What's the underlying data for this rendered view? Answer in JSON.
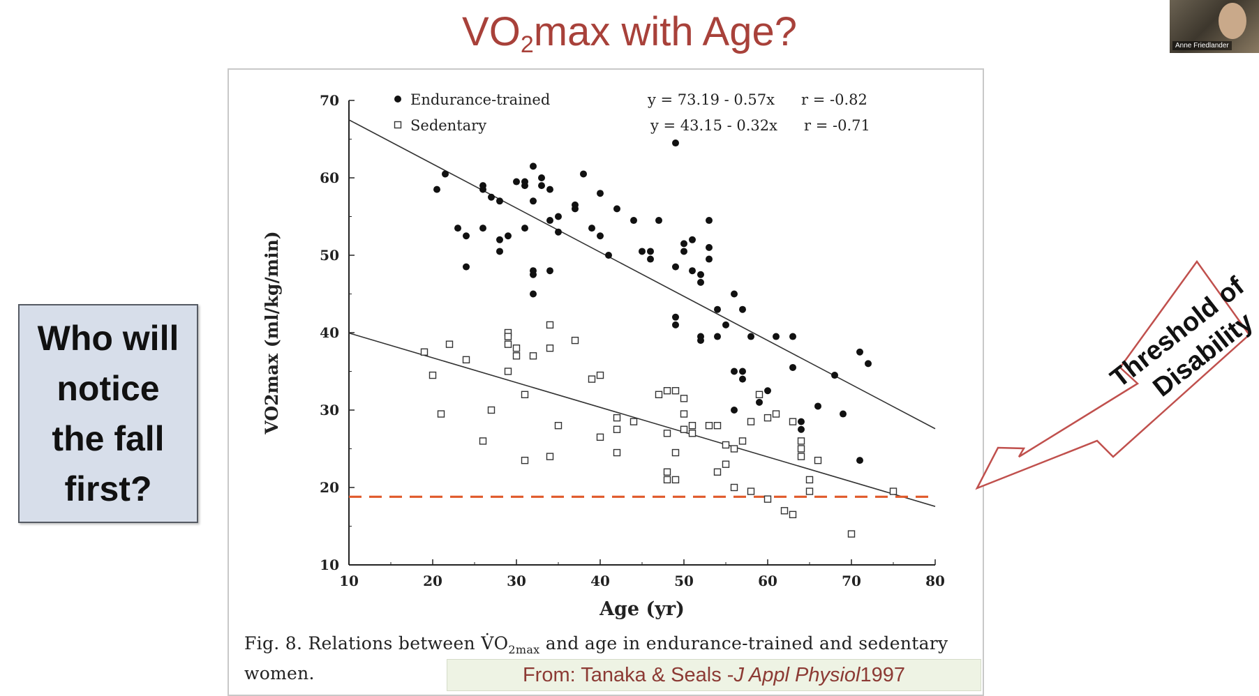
{
  "slide": {
    "title_prefix": "VO",
    "title_subscript": "2",
    "title_suffix": "max with Age?",
    "question": "Who will notice the fall first?",
    "callout_line1": "Threshold of",
    "callout_line2": "Disability",
    "credit_prefix": "From: Tanaka & Seals - ",
    "credit_journal": "J Appl Physiol",
    "credit_year": " 1997",
    "caption_prefix": "Fig. 8.  Relations between ",
    "caption_vo": "V̇O",
    "caption_sub": "2max",
    "caption_suffix": " and age in endurance-trained and sedentary women.",
    "webcam_label": "Anne Friedlander"
  },
  "colors": {
    "title": "#a8413a",
    "threshold": "#e05a2b",
    "callout": "#c0504d",
    "box_fill": "#d7deea"
  },
  "chart_data": {
    "type": "scatter",
    "xlabel": "Age (yr)",
    "ylabel": "VO2max (ml/kg/min)",
    "xlim": [
      10,
      80
    ],
    "ylim": [
      10,
      70
    ],
    "xticks": [
      10,
      20,
      30,
      40,
      50,
      60,
      70,
      80
    ],
    "yticks": [
      10,
      20,
      30,
      40,
      50,
      60,
      70
    ],
    "legend_position": "top-center",
    "threshold": {
      "y": 18.8,
      "style": "dashed"
    },
    "series": [
      {
        "name": "Endurance-trained",
        "marker": "filled-circle",
        "equation": "y = 73.19 - 0.57x",
        "r": "r = -0.82",
        "fit": {
          "intercept": 73.19,
          "slope": -0.57,
          "x_range": [
            10,
            80
          ]
        },
        "points": [
          [
            20.5,
            58.5
          ],
          [
            21.5,
            60.5
          ],
          [
            23,
            53.5
          ],
          [
            24,
            52.5
          ],
          [
            24,
            48.5
          ],
          [
            26,
            53.5
          ],
          [
            26,
            59
          ],
          [
            26,
            58.5
          ],
          [
            27,
            57.5
          ],
          [
            28,
            57
          ],
          [
            28,
            52
          ],
          [
            28,
            50.5
          ],
          [
            29,
            52.5
          ],
          [
            30,
            59.5
          ],
          [
            31,
            59
          ],
          [
            31,
            59.5
          ],
          [
            31,
            53.5
          ],
          [
            32,
            61.5
          ],
          [
            32,
            57
          ],
          [
            32,
            48
          ],
          [
            32,
            47.5
          ],
          [
            32,
            45
          ],
          [
            33,
            60
          ],
          [
            33,
            59
          ],
          [
            34,
            58.5
          ],
          [
            34,
            54.5
          ],
          [
            34,
            48
          ],
          [
            35,
            55
          ],
          [
            35,
            53
          ],
          [
            37,
            56.5
          ],
          [
            37,
            56
          ],
          [
            38,
            60.5
          ],
          [
            39,
            53.5
          ],
          [
            40,
            58
          ],
          [
            40,
            52.5
          ],
          [
            41,
            50
          ],
          [
            42,
            56
          ],
          [
            44,
            54.5
          ],
          [
            45,
            50.5
          ],
          [
            46,
            50.5
          ],
          [
            46,
            49.5
          ],
          [
            47,
            54.5
          ],
          [
            49,
            64.5
          ],
          [
            49,
            48.5
          ],
          [
            49,
            42
          ],
          [
            49,
            41
          ],
          [
            50,
            51.5
          ],
          [
            50,
            50.5
          ],
          [
            51,
            52
          ],
          [
            51,
            48
          ],
          [
            52,
            47.5
          ],
          [
            52,
            46.5
          ],
          [
            53,
            54.5
          ],
          [
            53,
            51
          ],
          [
            53,
            49.5
          ],
          [
            52,
            39.5
          ],
          [
            52,
            39
          ],
          [
            54,
            43
          ],
          [
            55,
            41
          ],
          [
            54,
            39.5
          ],
          [
            56,
            45
          ],
          [
            56,
            35
          ],
          [
            56,
            30
          ],
          [
            57,
            43
          ],
          [
            57,
            35
          ],
          [
            57,
            34
          ],
          [
            58,
            39.5
          ],
          [
            59,
            31
          ],
          [
            60,
            32.5
          ],
          [
            61,
            39.5
          ],
          [
            63,
            39.5
          ],
          [
            63,
            35.5
          ],
          [
            64,
            28.5
          ],
          [
            64,
            27.5
          ],
          [
            66,
            30.5
          ],
          [
            68,
            34.5
          ],
          [
            69,
            29.5
          ],
          [
            71,
            37.5
          ],
          [
            72,
            36
          ],
          [
            71,
            23.5
          ]
        ]
      },
      {
        "name": "Sedentary",
        "marker": "open-square",
        "equation": "y = 43.15 - 0.32x",
        "r": "r = -0.71",
        "fit": {
          "intercept": 43.15,
          "slope": -0.32,
          "x_range": [
            10,
            80
          ]
        },
        "points": [
          [
            19,
            37.5
          ],
          [
            20,
            34.5
          ],
          [
            21,
            29.5
          ],
          [
            22,
            38.5
          ],
          [
            24,
            36.5
          ],
          [
            26,
            26
          ],
          [
            27,
            30
          ],
          [
            29,
            40
          ],
          [
            29,
            39.5
          ],
          [
            29,
            38.5
          ],
          [
            30,
            38
          ],
          [
            30,
            37
          ],
          [
            29,
            35
          ],
          [
            31,
            32
          ],
          [
            31,
            23.5
          ],
          [
            32,
            37
          ],
          [
            34,
            41
          ],
          [
            34,
            38
          ],
          [
            34,
            24
          ],
          [
            35,
            28
          ],
          [
            37,
            39
          ],
          [
            39,
            34
          ],
          [
            40,
            34.5
          ],
          [
            40,
            26.5
          ],
          [
            42,
            29
          ],
          [
            42,
            27.5
          ],
          [
            42,
            24.5
          ],
          [
            44,
            28.5
          ],
          [
            47,
            32
          ],
          [
            48,
            32.5
          ],
          [
            48,
            27
          ],
          [
            48,
            22
          ],
          [
            48,
            21
          ],
          [
            49,
            32.5
          ],
          [
            49,
            24.5
          ],
          [
            49,
            21
          ],
          [
            50,
            31.5
          ],
          [
            50,
            29.5
          ],
          [
            50,
            27.5
          ],
          [
            51,
            28
          ],
          [
            51,
            27
          ],
          [
            53,
            28
          ],
          [
            54,
            28
          ],
          [
            54,
            22
          ],
          [
            55,
            25.5
          ],
          [
            55,
            23
          ],
          [
            56,
            25
          ],
          [
            56,
            20
          ],
          [
            57,
            26
          ],
          [
            58,
            28.5
          ],
          [
            58,
            19.5
          ],
          [
            59,
            32
          ],
          [
            60,
            29
          ],
          [
            60,
            18.5
          ],
          [
            61,
            29.5
          ],
          [
            62,
            17
          ],
          [
            63,
            28.5
          ],
          [
            63,
            16.5
          ],
          [
            64,
            26
          ],
          [
            64,
            25
          ],
          [
            64,
            24
          ],
          [
            65,
            21
          ],
          [
            65,
            19.5
          ],
          [
            66,
            23.5
          ],
          [
            70,
            14
          ],
          [
            75,
            19.5
          ]
        ]
      }
    ]
  }
}
